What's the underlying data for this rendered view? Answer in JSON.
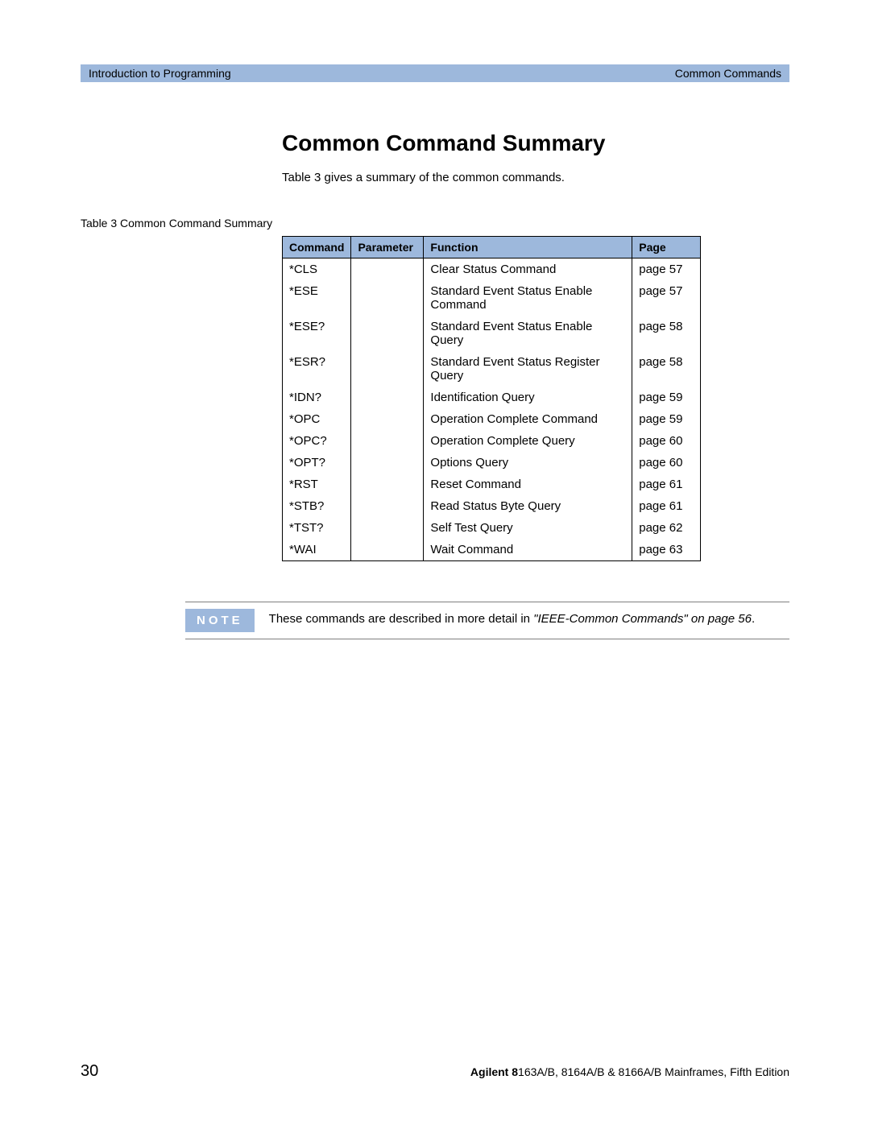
{
  "header": {
    "left": "Introduction to Programming",
    "right": "Common Commands"
  },
  "title": "Common Command Summary",
  "intro": "Table 3  gives a summary of the common commands.",
  "table": {
    "caption": "Table 3 Common Command Summary",
    "columns": [
      "Command",
      "Parameter",
      "Function",
      "Page"
    ],
    "rows": [
      [
        "*CLS",
        "",
        "Clear Status Command",
        "page 57"
      ],
      [
        "*ESE",
        "",
        "Standard Event Status Enable Command",
        "page 57"
      ],
      [
        "*ESE?",
        "",
        "Standard Event Status Enable Query",
        "page 58"
      ],
      [
        "*ESR?",
        "",
        "Standard Event Status Register Query",
        "page 58"
      ],
      [
        "*IDN?",
        "",
        "Identification Query",
        "page 59"
      ],
      [
        "*OPC",
        "",
        "Operation Complete Command",
        "page 59"
      ],
      [
        "*OPC?",
        "",
        "Operation Complete Query",
        "page 60"
      ],
      [
        "*OPT?",
        "",
        "Options Query",
        "page 60"
      ],
      [
        "*RST",
        "",
        "Reset Command",
        "page 61"
      ],
      [
        "*STB?",
        "",
        "Read Status Byte Query",
        "page 61"
      ],
      [
        "*TST?",
        "",
        "Self Test Query",
        "page 62"
      ],
      [
        "*WAI",
        "",
        "Wait Command",
        "page 63"
      ]
    ],
    "header_bg": "#9db8dc",
    "border_color": "#000000"
  },
  "note": {
    "label": "NOTE",
    "text_plain": "These commands are described in more detail in ",
    "text_italic": "\"IEEE-Common Commands\" on page 56",
    "text_after": "."
  },
  "footer": {
    "page": "30",
    "right_bold": "Agilent 8",
    "right_rest": "163A/B, 8164A/B & 8166A/B Mainframes, Fifth Edition"
  }
}
